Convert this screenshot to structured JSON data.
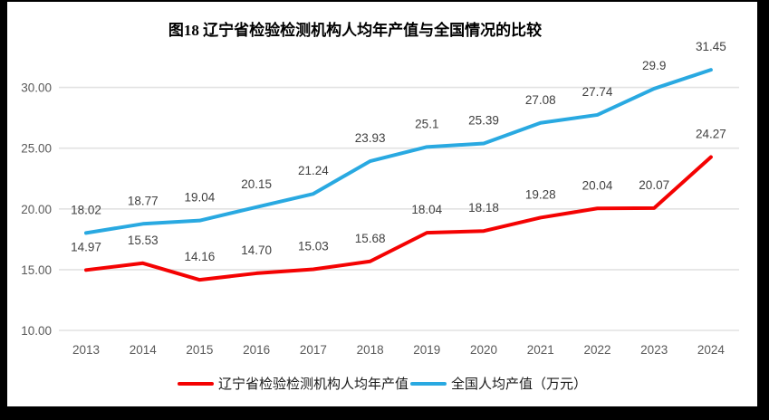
{
  "chart_data": {
    "type": "line",
    "title": "图18 辽宁省检验检测机构人均年产值与全国情况的比较",
    "categories": [
      "2013",
      "2014",
      "2015",
      "2016",
      "2017",
      "2018",
      "2019",
      "2020",
      "2021",
      "2022",
      "2023",
      "2024"
    ],
    "series": [
      {
        "name": "辽宁省检验检测机构人均年产值",
        "color": "#f40202",
        "values": [
          14.97,
          15.53,
          14.16,
          14.7,
          15.03,
          15.68,
          18.04,
          18.18,
          19.28,
          20.04,
          20.07,
          24.27
        ],
        "labels": [
          "14.97",
          "15.53",
          "14.16",
          "14.70",
          "15.03",
          "15.68",
          "18.04",
          "18.18",
          "19.28",
          "20.04",
          "20.07",
          "24.27"
        ]
      },
      {
        "name": "全国人均产值（万元）",
        "color": "#29a9e1",
        "values": [
          18.02,
          18.77,
          19.04,
          20.15,
          21.24,
          23.93,
          25.1,
          25.39,
          27.08,
          27.74,
          29.9,
          31.45
        ],
        "labels": [
          "18.02",
          "18.77",
          "19.04",
          "20.15",
          "21.24",
          "23.93",
          "25.1",
          "25.39",
          "27.08",
          "27.74",
          "29.9",
          "31.45"
        ]
      }
    ],
    "y_axis": {
      "min": 10,
      "max": 32.5,
      "ticks": [
        30,
        25,
        20,
        15,
        10
      ],
      "tick_labels": [
        "30.00",
        "25.00",
        "20.00",
        "15.00",
        "10.00"
      ]
    },
    "grid": true,
    "legend_position": "bottom",
    "colors": {
      "gridline": "#e2e2e2",
      "axis_text": "#595959",
      "data_label_text": "#404040",
      "chart_background": "#ffffff",
      "frame_border": "#000000"
    }
  }
}
